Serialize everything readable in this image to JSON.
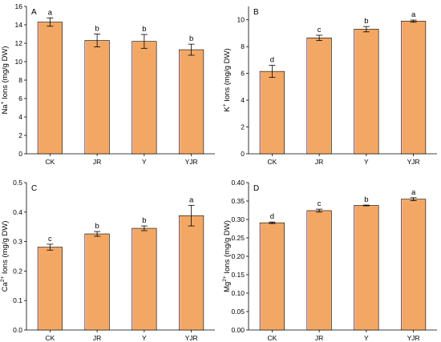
{
  "colors": {
    "bar_fill": "#F2A864",
    "bar_highlight": "#F4B6C9"
  },
  "chart_data": [
    {
      "type": "bar",
      "panel": "A",
      "ylabel_pre": "Na",
      "ylabel_sup": "+",
      "ylabel_post": " Ions (mg/g DW)",
      "categories": [
        "CK",
        "JR",
        "Y",
        "YJR"
      ],
      "values": [
        14.3,
        12.3,
        12.2,
        11.3
      ],
      "errors": [
        0.45,
        0.7,
        0.75,
        0.6
      ],
      "letters": [
        "a",
        "b",
        "b",
        "b"
      ],
      "ylim": [
        0,
        16
      ],
      "yticks": [
        0,
        2,
        4,
        6,
        8,
        10,
        12,
        14,
        16
      ],
      "ytick_labels": [
        "0",
        "2",
        "4",
        "6",
        "8",
        "10",
        "12",
        "14",
        "16"
      ]
    },
    {
      "type": "bar",
      "panel": "B",
      "ylabel_pre": "K",
      "ylabel_sup": "+",
      "ylabel_post": " Ions (mg/g DW)",
      "categories": [
        "CK",
        "JR",
        "Y",
        "YJR"
      ],
      "values": [
        6.15,
        8.65,
        9.3,
        9.9
      ],
      "errors": [
        0.45,
        0.2,
        0.2,
        0.08
      ],
      "letters": [
        "d",
        "c",
        "b",
        "a"
      ],
      "ylim": [
        0,
        11
      ],
      "yticks": [
        0,
        2,
        4,
        6,
        8,
        10
      ],
      "ytick_labels": [
        "0",
        "2",
        "4",
        "6",
        "8",
        "10"
      ]
    },
    {
      "type": "bar",
      "panel": "C",
      "ylabel_pre": "Ca",
      "ylabel_sup": "2+",
      "ylabel_post": " Ions (mg/g DW)",
      "categories": [
        "CK",
        "JR",
        "Y",
        "YJR"
      ],
      "values": [
        0.281,
        0.326,
        0.345,
        0.388
      ],
      "errors": [
        0.01,
        0.008,
        0.008,
        0.035
      ],
      "letters": [
        "c",
        "b",
        "b",
        "a"
      ],
      "ylim": [
        0,
        0.5
      ],
      "yticks": [
        0,
        0.1,
        0.2,
        0.3,
        0.4,
        0.5
      ],
      "ytick_labels": [
        "0.0",
        "0.1",
        "0.2",
        "0.3",
        "0.4",
        "0.5"
      ]
    },
    {
      "type": "bar",
      "panel": "D",
      "ylabel_pre": "Mg",
      "ylabel_sup": "2+",
      "ylabel_post": " Ions (mg/g DW)",
      "categories": [
        "CK",
        "JR",
        "Y",
        "YJR"
      ],
      "values": [
        0.291,
        0.324,
        0.338,
        0.355
      ],
      "errors": [
        0.002,
        0.004,
        0.001,
        0.004
      ],
      "letters": [
        "d",
        "c",
        "b",
        "a"
      ],
      "ylim": [
        0,
        0.4
      ],
      "yticks": [
        0,
        0.05,
        0.1,
        0.15,
        0.2,
        0.25,
        0.3,
        0.35,
        0.4
      ],
      "ytick_labels": [
        "0.00",
        "0.05",
        "0.10",
        "0.15",
        "0.20",
        "0.25",
        "0.30",
        "0.35",
        "0.40"
      ]
    }
  ]
}
